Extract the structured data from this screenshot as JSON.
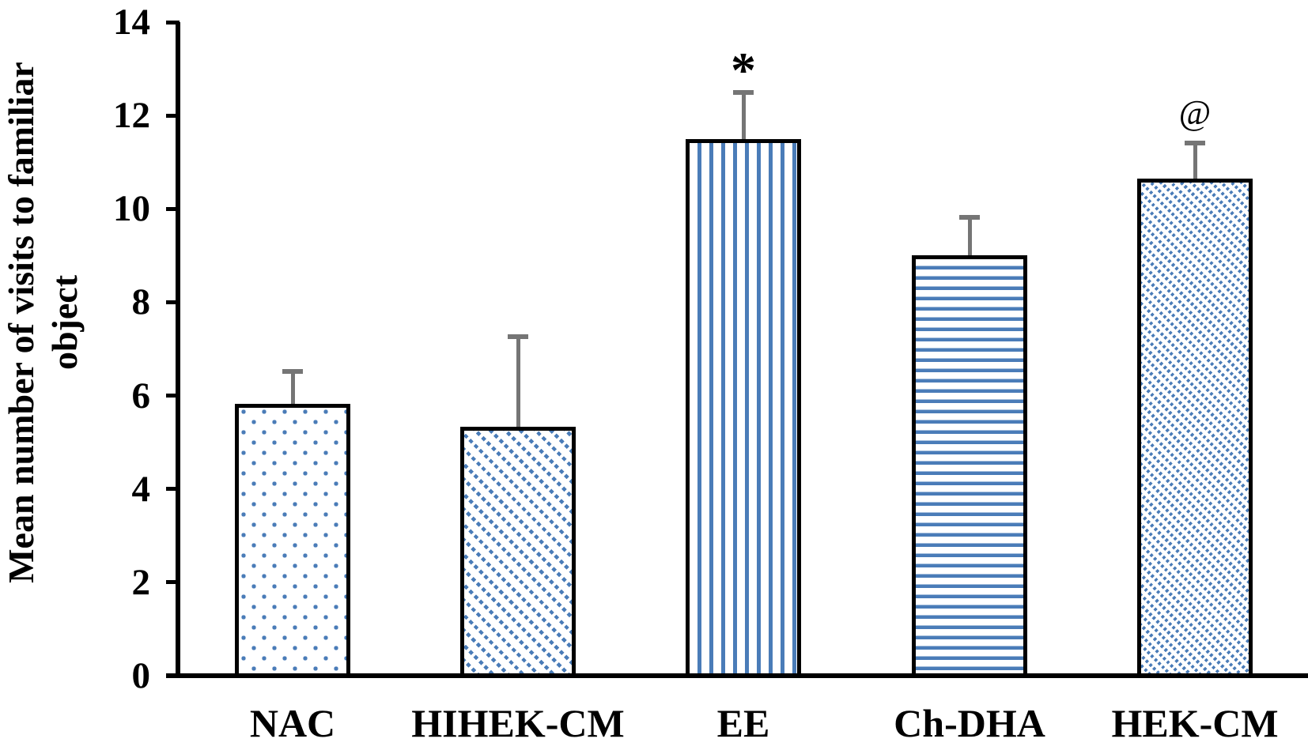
{
  "figure": {
    "background": "#FFFFFF"
  },
  "chart_data": {
    "type": "bar",
    "title": "",
    "categories": [
      "NAC",
      "HIHEK-CM",
      "EE",
      "Ch-DHA",
      "HEK-CM"
    ],
    "values": [
      5.83,
      5.33,
      11.5,
      9.0,
      10.65
    ],
    "error_up": [
      0.68,
      1.93,
      1.0,
      0.82,
      0.76
    ],
    "annotations": [
      "",
      "",
      "*",
      "",
      "@"
    ],
    "patterns": [
      "dots",
      "diagonal-light",
      "vertical-lines",
      "horizontal-lines",
      "diagonal-dense"
    ],
    "ylabel_line1": "Mean number of visits to familiar",
    "ylabel_line2": "object",
    "xlabel": "",
    "ylim": [
      0,
      14
    ],
    "ytick_step": 2,
    "ytick_labels": [
      "0",
      "2",
      "4",
      "6",
      "8",
      "10",
      "12",
      "14"
    ],
    "grid": false,
    "legend": "none",
    "error_bars": "upper-only"
  },
  "colors": {
    "bar_pattern_blue": "#4A7CB8",
    "bar_fill_background": "#FFFFFF",
    "bar_border": "#000000",
    "error_bar_gray": "#757575",
    "axis": "#000000",
    "text": "#000000"
  }
}
